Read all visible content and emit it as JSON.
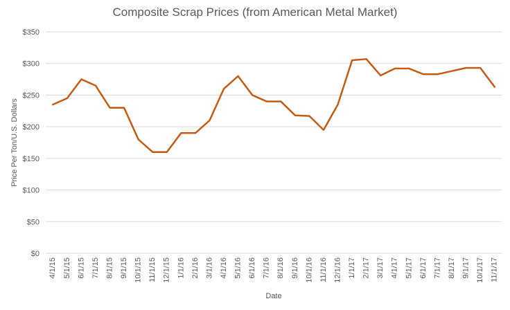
{
  "chart_data": {
    "type": "line",
    "title": "Composite Scrap Prices (from American Metal Market)",
    "xlabel": "Date",
    "ylabel": "Price Per Ton/U.S. Dollars",
    "ylim": [
      0,
      350
    ],
    "y_ticks": [
      0,
      50,
      100,
      150,
      200,
      250,
      300,
      350
    ],
    "y_tick_labels": [
      "$0",
      "$50",
      "$100",
      "$150",
      "$200",
      "$250",
      "$300",
      "$350"
    ],
    "grid": "horizontal",
    "legend": "none",
    "categories": [
      "4/1/15",
      "5/1/15",
      "6/1/15",
      "7/1/15",
      "8/1/15",
      "9/1/15",
      "10/1/15",
      "11/1/15",
      "12/1/15",
      "1/1/16",
      "2/1/16",
      "3/1/16",
      "4/1/16",
      "5/1/16",
      "6/1/16",
      "7/1/16",
      "8/1/16",
      "9/1/16",
      "10/1/16",
      "11/1/16",
      "12/1/16",
      "1/1/17",
      "2/1/17",
      "3/1/17",
      "4/1/17",
      "5/1/17",
      "6/1/17",
      "7/1/17",
      "8/1/17",
      "9/1/17",
      "10/1/17",
      "11/1/17"
    ],
    "series": [
      {
        "values": [
          235,
          245,
          275,
          265,
          230,
          230,
          180,
          160,
          160,
          190,
          190,
          210,
          260,
          280,
          250,
          240,
          240,
          218,
          217,
          195,
          235,
          305,
          307,
          281,
          292,
          292,
          283,
          283,
          288,
          293,
          293,
          263
        ],
        "color": "#C55A11"
      }
    ]
  },
  "colors": {
    "line": "#C55A11",
    "grid": "#D9D9D9",
    "text": "#595959"
  }
}
